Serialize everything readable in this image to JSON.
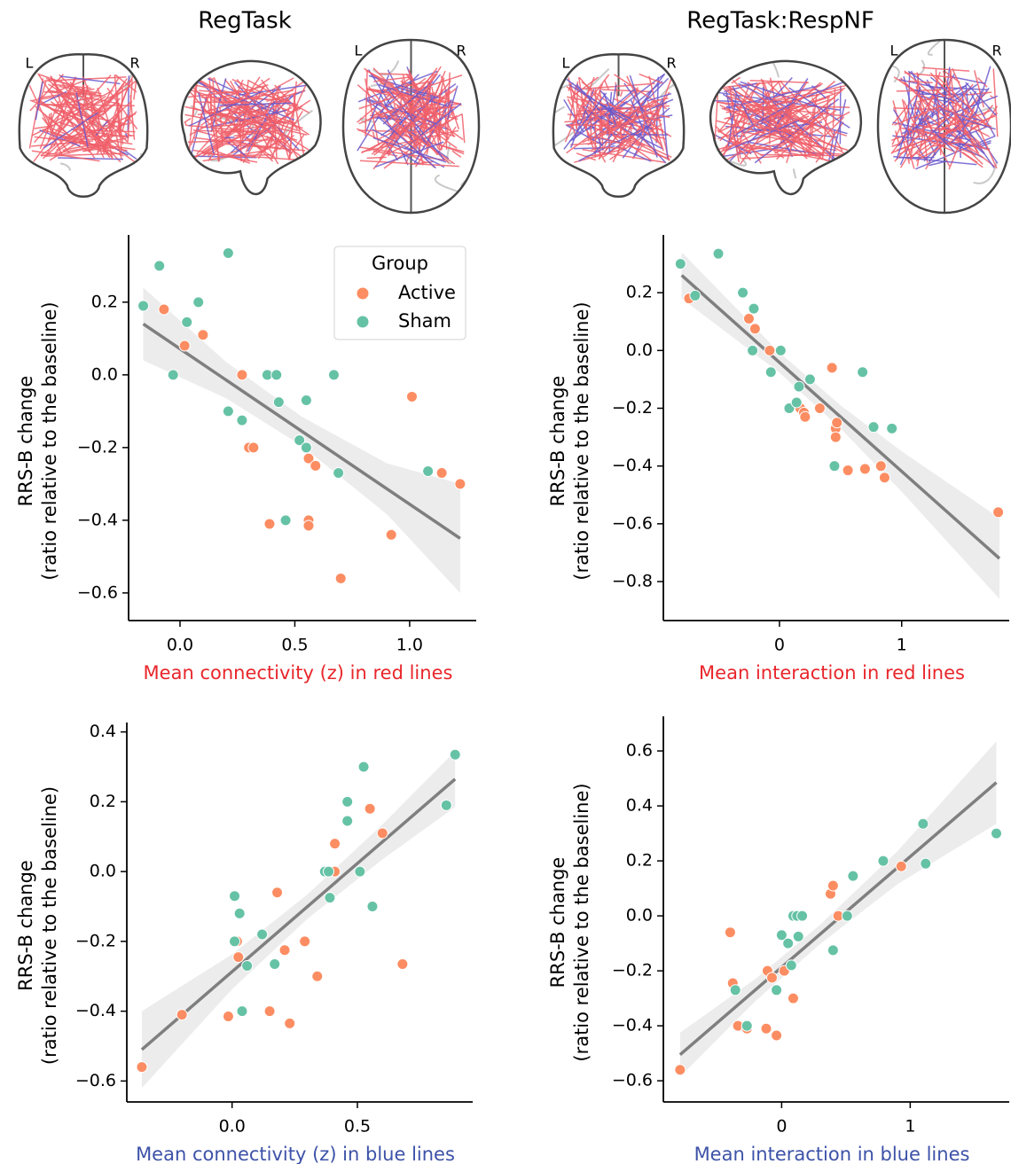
{
  "column_titles": [
    "RegTask",
    "RegTask:RespNF"
  ],
  "brain_orientation_labels": [
    [
      "L",
      "R",
      "L",
      "R"
    ],
    [
      "L",
      "R",
      "L",
      "R"
    ]
  ],
  "chart_data": [
    {
      "type": "scatter",
      "x_label": "Mean connectivity (z) in red lines",
      "x_label_color": "#e8262b",
      "y_label": [
        "RRS-B change",
        "(ratio relative to the baseline)"
      ],
      "legend": true,
      "legend_title": "Group",
      "legend_position": "upper right",
      "xlim": [
        -0.224,
        1.29
      ],
      "ylim": [
        -0.676,
        0.385
      ],
      "xticks": [
        {
          "value": 0,
          "label": "0.0"
        },
        {
          "value": 0.5,
          "label": "0.5"
        },
        {
          "value": 1,
          "label": "1.0"
        }
      ],
      "yticks": [
        {
          "value": 0.2,
          "label": "0.2"
        },
        {
          "value": 0,
          "label": "0.0"
        },
        {
          "value": -0.2,
          "label": "−0.2"
        },
        {
          "value": -0.4,
          "label": "−0.4"
        },
        {
          "value": -0.6,
          "label": "−0.6"
        }
      ],
      "series": [
        {
          "name": "Active",
          "color": "#fc8d62",
          "x": [
            -0.07,
            0.02,
            0.1,
            0.27,
            0.3,
            0.32,
            0.39,
            0.55,
            0.56,
            0.56,
            0.56,
            0.59,
            0.7,
            0.92,
            1.01,
            1.14,
            1.22
          ],
          "values": [
            0.18,
            0.08,
            0.11,
            0.0,
            -0.2,
            -0.2,
            -0.41,
            -0.2,
            -0.23,
            -0.4,
            -0.415,
            -0.25,
            -0.56,
            -0.44,
            -0.06,
            -0.27,
            -0.3
          ]
        },
        {
          "name": "Sham",
          "color": "#66c2a5",
          "x": [
            -0.16,
            -0.09,
            -0.03,
            0.03,
            0.08,
            0.21,
            0.21,
            0.27,
            0.38,
            0.42,
            0.43,
            0.52,
            0.55,
            0.55,
            0.46,
            0.67,
            0.69,
            1.08
          ],
          "values": [
            0.19,
            0.3,
            0.0,
            0.145,
            0.2,
            0.335,
            -0.1,
            -0.125,
            0.0,
            0.0,
            -0.075,
            -0.18,
            -0.07,
            -0.2,
            -0.4,
            0.0,
            -0.27,
            -0.265
          ]
        }
      ],
      "regression": {
        "color": "#7f7f7f",
        "x": [
          -0.16,
          1.22
        ],
        "y": [
          0.14,
          -0.45
        ],
        "ci_color": "#ececec",
        "ci_x": [
          -0.16,
          0.2,
          0.53,
          0.9,
          1.22
        ],
        "ci_lower": [
          0.04,
          -0.064,
          -0.195,
          -0.383,
          -0.6
        ],
        "ci_upper": [
          0.24,
          0.036,
          -0.115,
          -0.243,
          -0.3
        ]
      }
    },
    {
      "type": "scatter",
      "x_label": "Mean interaction in red lines",
      "x_label_color": "#e8262b",
      "y_label": [
        "RRS-B change",
        "(ratio relative to the baseline)"
      ],
      "xlim": [
        -0.95,
        1.88
      ],
      "ylim": [
        -0.935,
        0.4
      ],
      "xticks": [
        0,
        1
      ],
      "yticks": [
        {
          "value": 0.2,
          "label": "0.2"
        },
        {
          "value": 0,
          "label": "0.0"
        },
        {
          "value": -0.2,
          "label": "−0.2"
        },
        {
          "value": -0.4,
          "label": "−0.4"
        },
        {
          "value": -0.6,
          "label": "−0.6"
        },
        {
          "value": -0.8,
          "label": "−0.8"
        }
      ],
      "series": [
        {
          "name": "Active",
          "color": "#fc8d62",
          "x": [
            -0.74,
            -0.25,
            -0.2,
            -0.08,
            0.17,
            0.2,
            0.21,
            0.33,
            0.43,
            0.46,
            0.46,
            0.47,
            0.56,
            0.7,
            0.83,
            0.86,
            1.79
          ],
          "values": [
            0.18,
            0.11,
            0.075,
            0.0,
            -0.2,
            -0.215,
            -0.23,
            -0.2,
            -0.06,
            -0.27,
            -0.3,
            -0.25,
            -0.415,
            -0.41,
            -0.4,
            -0.44,
            -0.56
          ]
        },
        {
          "name": "Sham",
          "color": "#66c2a5",
          "x": [
            -0.81,
            -0.69,
            -0.5,
            -0.3,
            -0.21,
            -0.22,
            0.01,
            -0.07,
            0.08,
            0.14,
            0.16,
            0.25,
            0.45,
            0.68,
            0.77,
            0.92
          ],
          "values": [
            0.3,
            0.19,
            0.335,
            0.2,
            0.145,
            0.0,
            0.0,
            -0.075,
            -0.2,
            -0.18,
            -0.125,
            -0.1,
            -0.4,
            -0.075,
            -0.265,
            -0.27
          ]
        }
      ],
      "regression": {
        "color": "#7f7f7f",
        "x": [
          -0.8,
          1.8
        ],
        "y": [
          0.26,
          -0.72
        ],
        "ci_color": "#ececec",
        "ci_x": [
          -0.8,
          0,
          0.5,
          1.0,
          1.8
        ],
        "ci_lower": [
          0.18,
          -0.077,
          -0.27,
          -0.489,
          -0.86
        ],
        "ci_upper": [
          0.34,
          -0.007,
          -0.19,
          -0.349,
          -0.58
        ]
      }
    },
    {
      "type": "scatter",
      "x_label": "Mean connectivity (z) in blue lines",
      "x_label_color": "#3d52a8",
      "y_label": [
        "RRS-B change",
        "(ratio relative to the baseline)"
      ],
      "xlim": [
        -0.42,
        0.96
      ],
      "ylim": [
        -0.66,
        0.427
      ],
      "xticks": [
        {
          "value": 0,
          "label": "0.0"
        },
        {
          "value": 0.5,
          "label": "0.5"
        }
      ],
      "yticks": [
        {
          "value": 0.4,
          "label": "0.4"
        },
        {
          "value": 0.2,
          "label": "0.2"
        },
        {
          "value": 0,
          "label": "0.0"
        },
        {
          "value": -0.2,
          "label": "−0.2"
        },
        {
          "value": -0.4,
          "label": "−0.4"
        },
        {
          "value": -0.6,
          "label": "−0.6"
        }
      ],
      "series": [
        {
          "name": "Active",
          "color": "#fc8d62",
          "x": [
            -0.36,
            -0.2,
            -0.015,
            0.02,
            0.025,
            0.15,
            0.18,
            0.21,
            0.23,
            0.29,
            0.34,
            0.41,
            0.41,
            0.55,
            0.6,
            0.68
          ],
          "values": [
            -0.56,
            -0.41,
            -0.415,
            -0.2,
            -0.245,
            -0.4,
            -0.06,
            -0.225,
            -0.435,
            -0.2,
            -0.3,
            0.08,
            0.0,
            0.18,
            0.11,
            -0.265
          ]
        },
        {
          "name": "Sham",
          "color": "#66c2a5",
          "x": [
            0.01,
            0.01,
            0.03,
            0.04,
            0.06,
            0.12,
            0.17,
            0.37,
            0.385,
            0.39,
            0.46,
            0.46,
            0.51,
            0.525,
            0.56,
            0.855,
            0.89
          ],
          "values": [
            -0.07,
            -0.2,
            -0.12,
            -0.4,
            -0.27,
            -0.18,
            -0.265,
            0.0,
            0.0,
            -0.075,
            0.145,
            0.2,
            0.0,
            0.3,
            -0.1,
            0.19,
            0.335
          ]
        }
      ],
      "regression": {
        "color": "#7f7f7f",
        "x": [
          -0.36,
          0.89
        ],
        "y": [
          -0.51,
          0.265
        ],
        "ci_color": "#ececec",
        "ci_x": [
          -0.36,
          0,
          0.3,
          0.6,
          0.89
        ],
        "ci_lower": [
          -0.62,
          -0.337,
          -0.136,
          0.035,
          0.185
        ],
        "ci_upper": [
          -0.4,
          -0.237,
          -0.066,
          0.135,
          0.345
        ]
      }
    },
    {
      "type": "scatter",
      "x_label": "Mean interaction in blue lines",
      "x_label_color": "#3d52a8",
      "y_label": [
        "RRS-B change",
        "(ratio relative to the baseline)"
      ],
      "xlim": [
        -0.92,
        1.77
      ],
      "ylim": [
        -0.677,
        0.726
      ],
      "xticks": [
        0,
        1
      ],
      "yticks": [
        {
          "value": 0.6,
          "label": "0.6"
        },
        {
          "value": 0.4,
          "label": "0.4"
        },
        {
          "value": 0.2,
          "label": "0.2"
        },
        {
          "value": 0,
          "label": "0.0"
        },
        {
          "value": -0.2,
          "label": "−0.2"
        },
        {
          "value": -0.4,
          "label": "−0.4"
        },
        {
          "value": -0.6,
          "label": "−0.6"
        }
      ],
      "series": [
        {
          "name": "Active",
          "color": "#fc8d62",
          "x": [
            -0.79,
            -0.4,
            -0.38,
            -0.34,
            -0.27,
            -0.11,
            -0.12,
            -0.075,
            -0.04,
            0.02,
            0.09,
            0.38,
            0.4,
            0.44,
            0.93
          ],
          "values": [
            -0.56,
            -0.06,
            -0.245,
            -0.4,
            -0.41,
            -0.2,
            -0.41,
            -0.225,
            -0.435,
            -0.2,
            -0.3,
            0.08,
            0.11,
            0.0,
            0.18
          ]
        },
        {
          "name": "Sham",
          "color": "#66c2a5",
          "x": [
            -0.36,
            -0.27,
            -0.04,
            0.0,
            0.05,
            0.075,
            0.09,
            0.12,
            0.16,
            0.13,
            0.4,
            0.51,
            0.555,
            0.79,
            1.1,
            1.12,
            1.67
          ],
          "values": [
            -0.27,
            -0.4,
            -0.27,
            -0.07,
            -0.1,
            -0.18,
            0.0,
            0.0,
            0.0,
            -0.075,
            -0.125,
            0.0,
            0.145,
            0.2,
            0.335,
            0.19,
            0.3
          ]
        }
      ],
      "regression": {
        "color": "#7f7f7f",
        "x": [
          -0.79,
          1.67
        ],
        "y": [
          -0.505,
          0.485
        ],
        "ci_color": "#ececec",
        "ci_x": [
          -0.79,
          -0.2,
          0.3,
          0.9,
          1.67
        ],
        "ci_lower": [
          -0.585,
          -0.308,
          -0.102,
          0.115,
          0.335
        ],
        "ci_upper": [
          -0.425,
          -0.228,
          -0.032,
          0.235,
          0.635
        ]
      }
    }
  ]
}
